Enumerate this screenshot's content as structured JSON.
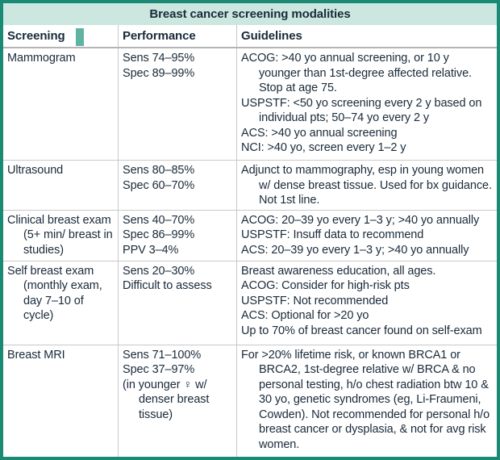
{
  "colors": {
    "border_teal": "#1b8a75",
    "title_bg": "#cbe7df",
    "text": "#1a2a3a",
    "grid_line": "#c9c9c9",
    "header_rule": "#b5b5b5",
    "artifact_teal": "#5fb3a4"
  },
  "table": {
    "title": "Breast cancer screening modalities",
    "columns": [
      "Screening",
      "Performance",
      "Guidelines"
    ],
    "rows": [
      {
        "screening": "Mammogram",
        "performance": [
          "Sens 74–95%",
          "Spec 89–99%"
        ],
        "guidelines": [
          "ACOG: >40 yo annual screening, or 10 y younger than 1st-degree affected relative. Stop at age 75.",
          "USPSTF: <50 yo screening every 2 y based on individual pts; 50–74 yo every 2 y",
          "ACS: >40 yo annual screening",
          "NCI: >40 yo, screen every 1–2 y"
        ]
      },
      {
        "screening": "Ultrasound",
        "performance": [
          "Sens 80–85%",
          "Spec 60–70%"
        ],
        "guidelines": [
          "Adjunct to mammography, esp in young women w/ dense breast tissue. Used for bx guidance. Not 1st line."
        ]
      },
      {
        "screening": "Clinical breast exam (5+ min/ breast in studies)",
        "performance": [
          "Sens 40–70%",
          "Spec 86–99%",
          "PPV 3–4%"
        ],
        "guidelines": [
          "ACOG: 20–39 yo every 1–3 y; >40 yo annually",
          "USPSTF: Insuff data to recommend",
          "ACS: 20–39 yo every 1–3 y; >40 yo annually"
        ]
      },
      {
        "screening": "Self breast exam (monthly exam, day 7–10 of cycle)",
        "performance": [
          "Sens 20–30%",
          "Difficult to assess"
        ],
        "guidelines": [
          "Breast awareness education, all ages.",
          "ACOG: Consider for high-risk pts",
          "USPSTF: Not recommended",
          "ACS: Optional for >20 yo",
          "Up to 70% of breast cancer found on self-exam"
        ]
      },
      {
        "screening": "Breast MRI",
        "performance": [
          "Sens 71–100%",
          "Spec 37–97%",
          "(in younger ♀ w/ denser breast tissue)"
        ],
        "guidelines": [
          "For >20% lifetime risk, or known BRCA1 or BRCA2, 1st-degree relative w/ BRCA & no personal testing, h/o chest radiation btw 10 & 30 yo, genetic syndromes (eg, Li-Fraumeni, Cowden). Not recommended for personal h/o breast cancer or dysplasia, & not for avg risk women."
        ]
      }
    ]
  }
}
